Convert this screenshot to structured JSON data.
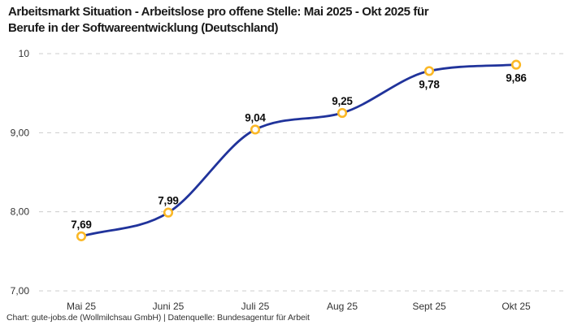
{
  "title": {
    "line1": "Arbeitsmarkt Situation - Arbeitslose pro offene Stelle: Mai 2025 - Okt 2025 für",
    "line2": "Berufe in der Softwareentwicklung (Deutschland)"
  },
  "footer": "Chart: gute-jobs.de (Wollmilchsau GmbH) | Datenquelle: Bundesagentur für Arbeit",
  "chart_data": {
    "type": "line",
    "title": "Arbeitsmarkt Situation - Arbeitslose pro offene Stelle: Mai 2025 - Okt 2025 für Berufe in der Softwareentwicklung (Deutschland)",
    "categories": [
      "Mai 25",
      "Juni 25",
      "Juli 25",
      "Aug 25",
      "Sept 25",
      "Okt 25"
    ],
    "values": [
      7.69,
      7.99,
      9.04,
      9.25,
      9.78,
      9.86
    ],
    "value_labels": [
      "7,69",
      "7,99",
      "9,04",
      "9,25",
      "9,78",
      "9,86"
    ],
    "value_label_positions": [
      "above",
      "above",
      "above",
      "above",
      "below",
      "below"
    ],
    "y_ticks": [
      {
        "value": 10,
        "label": "10"
      },
      {
        "value": 9,
        "label": "9,00"
      },
      {
        "value": 8,
        "label": "8,00"
      },
      {
        "value": 7,
        "label": "7,00"
      }
    ],
    "ylim": [
      7,
      10
    ],
    "xlabel": "",
    "ylabel": "",
    "grid": "horizontal-dashed",
    "legend": "none",
    "line_color": "#20339b",
    "marker_stroke_color": "#fbb826",
    "marker_fill_color": "#ffffff",
    "grid_color": "#cccccc",
    "tick_label_color": "#333333",
    "data_label_color": "#0d0d0d"
  }
}
